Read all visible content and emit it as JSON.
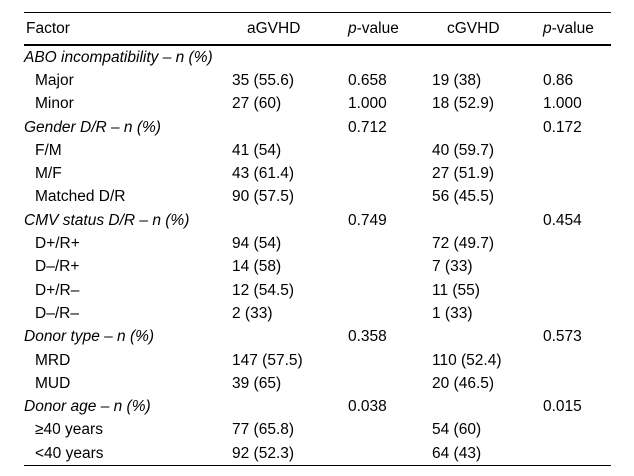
{
  "page": {
    "background": "#ffffff",
    "text_color": "#000000",
    "rule_color": "#000000"
  },
  "table": {
    "headers": [
      {
        "text": "Factor"
      },
      {
        "text": "aGVHD"
      },
      {
        "italic_prefix": "p",
        "text": "-value"
      },
      {
        "text": "cGVHD"
      },
      {
        "italic_prefix": "p",
        "text": "-value"
      }
    ],
    "rows": [
      {
        "type": "group",
        "factor": "ABO incompatibility – n (%)",
        "agvhd": "",
        "p1": "",
        "cgvhd": "",
        "p2": ""
      },
      {
        "type": "item",
        "factor": "Major",
        "agvhd": "35 (55.6)",
        "p1": "0.658",
        "cgvhd": "19 (38)",
        "p2": "0.86"
      },
      {
        "type": "item",
        "factor": "Minor",
        "agvhd": "27 (60)",
        "p1": "1.000",
        "cgvhd": "18 (52.9)",
        "p2": "1.000"
      },
      {
        "type": "group",
        "factor": "Gender D/R – n (%)",
        "agvhd": "",
        "p1": "0.712",
        "cgvhd": "",
        "p2": "0.172"
      },
      {
        "type": "item",
        "factor": "F/M",
        "agvhd": "41 (54)",
        "p1": "",
        "cgvhd": "40 (59.7)",
        "p2": ""
      },
      {
        "type": "item",
        "factor": "M/F",
        "agvhd": "43 (61.4)",
        "p1": "",
        "cgvhd": "27 (51.9)",
        "p2": ""
      },
      {
        "type": "item",
        "factor": "Matched D/R",
        "agvhd": "90 (57.5)",
        "p1": "",
        "cgvhd": "56 (45.5)",
        "p2": ""
      },
      {
        "type": "group",
        "factor": "CMV status D/R – n (%)",
        "agvhd": "",
        "p1": "0.749",
        "cgvhd": "",
        "p2": "0.454"
      },
      {
        "type": "item",
        "factor": "D+/R+",
        "agvhd": "94 (54)",
        "p1": "",
        "cgvhd": "72 (49.7)",
        "p2": ""
      },
      {
        "type": "item",
        "factor": "D–/R+",
        "agvhd": "14 (58)",
        "p1": "",
        "cgvhd": "7 (33)",
        "p2": ""
      },
      {
        "type": "item",
        "factor": "D+/R–",
        "agvhd": "12 (54.5)",
        "p1": "",
        "cgvhd": "11 (55)",
        "p2": ""
      },
      {
        "type": "item",
        "factor": "D–/R–",
        "agvhd": "2 (33)",
        "p1": "",
        "cgvhd": "1 (33)",
        "p2": ""
      },
      {
        "type": "group",
        "factor": "Donor type – n (%)",
        "agvhd": "",
        "p1": "0.358",
        "cgvhd": "",
        "p2": "0.573"
      },
      {
        "type": "item",
        "factor": "MRD",
        "agvhd": "147 (57.5)",
        "p1": "",
        "cgvhd": "110 (52.4)",
        "p2": ""
      },
      {
        "type": "item",
        "factor": "MUD",
        "agvhd": "39 (65)",
        "p1": "",
        "cgvhd": "20 (46.5)",
        "p2": ""
      },
      {
        "type": "group",
        "factor": "Donor age – n (%)",
        "agvhd": "",
        "p1": "0.038",
        "cgvhd": "",
        "p2": "0.015"
      },
      {
        "type": "item",
        "factor": "≥40 years",
        "agvhd": "77 (65.8)",
        "p1": "",
        "cgvhd": "54 (60)",
        "p2": ""
      },
      {
        "type": "item",
        "factor": "<40 years",
        "agvhd": "92 (52.3)",
        "p1": "",
        "cgvhd": "64 (43)",
        "p2": ""
      }
    ]
  }
}
